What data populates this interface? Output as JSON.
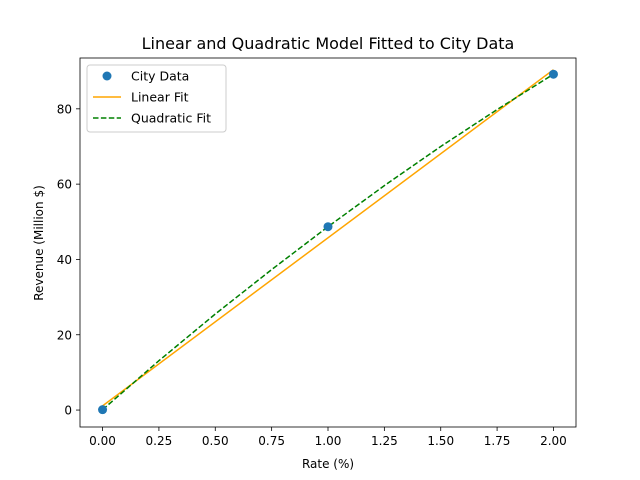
{
  "chart_data": {
    "type": "scatter",
    "title": "Linear and Quadratic Model Fitted to City Data",
    "xlabel": "Rate (%)",
    "ylabel": "Revenue (Million $)",
    "xlim": [
      -0.1,
      2.1
    ],
    "ylim": [
      -4.5,
      93.5
    ],
    "x_ticks": [
      0.0,
      0.25,
      0.5,
      0.75,
      1.0,
      1.25,
      1.5,
      1.75,
      2.0
    ],
    "x_tick_labels": [
      "0.00",
      "0.25",
      "0.50",
      "0.75",
      "1.00",
      "1.25",
      "1.50",
      "1.75",
      "2.00"
    ],
    "y_ticks": [
      0,
      20,
      40,
      60,
      80
    ],
    "y_tick_labels": [
      "0",
      "20",
      "40",
      "60",
      "80"
    ],
    "grid": false,
    "legend_position": "top-left",
    "series": [
      {
        "name": "City Data",
        "kind": "scatter",
        "color": "#1f77b4",
        "x": [
          0,
          1,
          2
        ],
        "y": [
          0.1,
          48.7,
          89.2
        ]
      },
      {
        "name": "Linear Fit",
        "kind": "line",
        "style": "solid",
        "color": "#ffa500",
        "x": [
          0,
          2
        ],
        "y": [
          1.1,
          90.4
        ]
      },
      {
        "name": "Quadratic Fit",
        "kind": "line",
        "style": "dashed",
        "color": "#008000",
        "x": [
          0,
          0.25,
          0.5,
          0.75,
          1.0,
          1.25,
          1.5,
          1.75,
          2.0
        ],
        "y": [
          0.1,
          13.1,
          25.5,
          37.3,
          48.7,
          59.6,
          70.0,
          79.8,
          89.2
        ]
      }
    ]
  }
}
